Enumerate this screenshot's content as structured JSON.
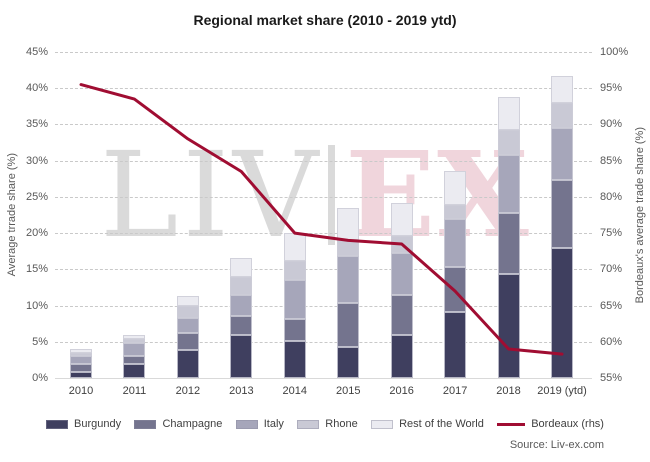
{
  "title": "Regional market share (2010 - 2019 ytd)",
  "source": "Source: Liv-ex.com",
  "watermark": {
    "left_text": "LIV",
    "right_text": "EX"
  },
  "chart_data": {
    "type": "bar",
    "stacked": true,
    "title": "Regional market share (2010 - 2019 ytd)",
    "categories": [
      "2010",
      "2011",
      "2012",
      "2013",
      "2014",
      "2015",
      "2016",
      "2017",
      "2018",
      "2019 (ytd)"
    ],
    "series": [
      {
        "name": "Burgundy",
        "color": "#3f3f5f",
        "values": [
          0.8,
          1.9,
          3.9,
          6.0,
          5.1,
          4.3,
          5.9,
          9.1,
          14.4,
          17.9
        ]
      },
      {
        "name": "Champagne",
        "color": "#74748e",
        "values": [
          1.1,
          1.2,
          2.3,
          2.5,
          3.1,
          6.0,
          5.5,
          6.2,
          8.4,
          9.4
        ]
      },
      {
        "name": "Italy",
        "color": "#a6a6ba",
        "values": [
          1.1,
          1.7,
          2.1,
          3.0,
          5.3,
          6.5,
          5.8,
          6.6,
          8.0,
          7.2
        ]
      },
      {
        "name": "Rhone",
        "color": "#c9c9d5",
        "values": [
          0.5,
          0.6,
          1.6,
          2.4,
          2.6,
          2.3,
          2.4,
          2.0,
          3.5,
          3.4
        ]
      },
      {
        "name": "Rest of the World",
        "color": "#ebebf1",
        "values": [
          0.5,
          0.6,
          1.4,
          2.6,
          3.9,
          4.4,
          4.5,
          4.7,
          4.5,
          3.8
        ]
      }
    ],
    "line_series": {
      "name": "Bordeaux (rhs)",
      "color": "#a00d32",
      "axis": "right",
      "values": [
        95.5,
        93.5,
        88.0,
        83.5,
        75.0,
        74.0,
        73.5,
        67.0,
        59.0,
        58.3
      ]
    },
    "left_axis": {
      "label": "Average trrade share (%)",
      "min": 0,
      "max": 45,
      "step": 5,
      "tick_format": "percent"
    },
    "right_axis": {
      "label": "Bordeaux's average trade share (%)",
      "min": 55,
      "max": 100,
      "step": 5,
      "tick_format": "percent"
    },
    "grid": "dashed-horizontal",
    "legend_position": "bottom"
  }
}
